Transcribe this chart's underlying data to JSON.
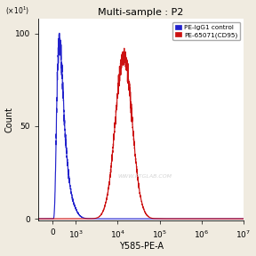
{
  "title": "Multi-sample : P2",
  "xlabel": "Y585-PE-A",
  "ylabel": "Count",
  "yticks": [
    0,
    50,
    100
  ],
  "blue_label": "PE-IgG1 control",
  "red_label": "PE-65071(CD95)",
  "blue_color": "#2222CC",
  "red_color": "#CC1111",
  "watermark": "WWW.PTGLAB.COM",
  "blue_peak_x": 300,
  "blue_peak_height": 95,
  "blue_sigma_log": 0.22,
  "red_peak_x": 14000,
  "red_peak_height": 88,
  "red_sigma_log": 0.2,
  "linthresh": 1000,
  "linscale": 0.5,
  "xlim_low": -600,
  "xlim_high": 10000000.0,
  "ylim_low": -1,
  "ylim_high": 108,
  "background_color": "#ffffff",
  "fig_background": "#f0ebe0"
}
